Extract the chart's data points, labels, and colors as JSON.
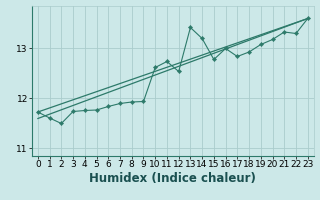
{
  "xlabel": "Humidex (Indice chaleur)",
  "bg_color": "#cce8e8",
  "grid_color": "#aacccc",
  "line_color": "#2d7a6a",
  "marker_color": "#2d7a6a",
  "xlim": [
    -0.5,
    23.5
  ],
  "ylim": [
    10.85,
    13.85
  ],
  "yticks": [
    11,
    12,
    13
  ],
  "xticks": [
    0,
    1,
    2,
    3,
    4,
    5,
    6,
    7,
    8,
    9,
    10,
    11,
    12,
    13,
    14,
    15,
    16,
    17,
    18,
    19,
    20,
    21,
    22,
    23
  ],
  "data_x": [
    0,
    1,
    2,
    3,
    4,
    5,
    6,
    7,
    8,
    9,
    10,
    11,
    12,
    13,
    14,
    15,
    16,
    17,
    18,
    19,
    20,
    21,
    22,
    23
  ],
  "data_y": [
    11.73,
    11.61,
    11.5,
    11.74,
    11.76,
    11.77,
    11.84,
    11.9,
    11.93,
    11.94,
    12.62,
    12.74,
    12.54,
    13.42,
    13.2,
    12.78,
    13.0,
    12.84,
    12.93,
    13.08,
    13.18,
    13.33,
    13.3,
    13.6
  ],
  "trend1_x": [
    0,
    23
  ],
  "trend1_y": [
    11.73,
    13.6
  ],
  "trend2_x": [
    0,
    23
  ],
  "trend2_y": [
    11.6,
    13.6
  ],
  "fontsize_label": 8.5,
  "fontsize_tick": 6.5
}
